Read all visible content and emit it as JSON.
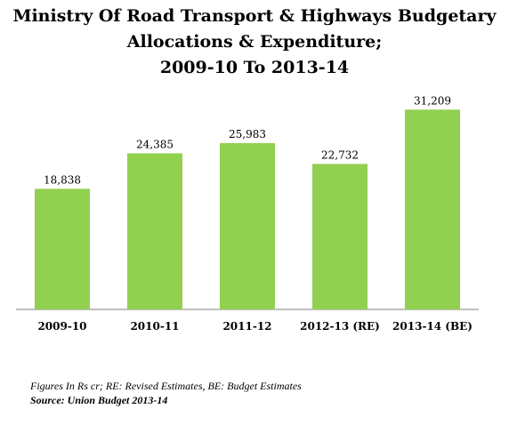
{
  "chart_data": {
    "type": "bar",
    "title_lines": [
      "Ministry Of Road Transport & Highways Budgetary",
      "Allocations & Expenditure;",
      "2009-10 To 2013-14"
    ],
    "categories": [
      "2009-10",
      "2010-11",
      "2011-12",
      "2012-13 (RE)",
      "2013-14 (BE)"
    ],
    "values": [
      18838,
      24385,
      25983,
      22732,
      31209
    ],
    "data_labels": [
      "18,838",
      "24,385",
      "25,983",
      "22,732",
      "31,209"
    ],
    "ylim": [
      0,
      35000
    ],
    "bar_color": "#92d050",
    "grid": false,
    "legend": "none"
  },
  "footer": {
    "note": "Figures In Rs cr; RE: Revised Estimates, BE: Budget Estimates",
    "source": "Source: Union Budget 2013-14"
  }
}
